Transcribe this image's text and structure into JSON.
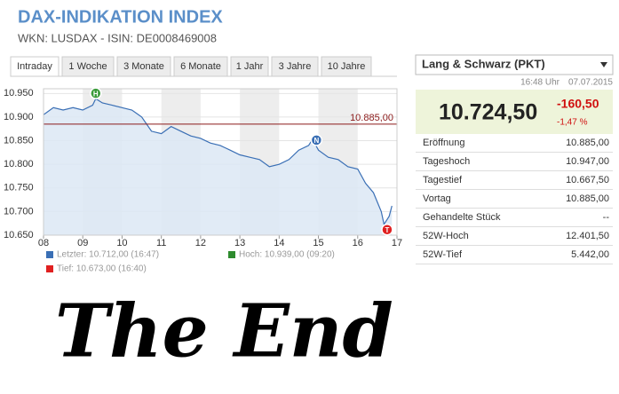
{
  "header": {
    "title": "DAX-INDIKATION INDEX",
    "subtitle": "WKN: LUSDAX - ISIN: DE0008469008"
  },
  "tabs": [
    "Intraday",
    "1 Woche",
    "3 Monate",
    "6 Monate",
    "1 Jahr",
    "3 Jahre",
    "10 Jahre"
  ],
  "chart_data": {
    "type": "line",
    "x": [
      8.0,
      8.25,
      8.5,
      8.75,
      9.0,
      9.25,
      9.33,
      9.5,
      9.75,
      10.0,
      10.25,
      10.5,
      10.75,
      11.0,
      11.25,
      11.5,
      11.75,
      12.0,
      12.25,
      12.5,
      12.75,
      13.0,
      13.25,
      13.5,
      13.75,
      14.0,
      14.25,
      14.5,
      14.75,
      14.85,
      15.0,
      15.25,
      15.5,
      15.75,
      16.0,
      16.2,
      16.4,
      16.6,
      16.67,
      16.8,
      16.87
    ],
    "values": [
      10905,
      10920,
      10915,
      10920,
      10915,
      10925,
      10939,
      10930,
      10925,
      10920,
      10915,
      10900,
      10870,
      10865,
      10880,
      10870,
      10860,
      10855,
      10845,
      10840,
      10830,
      10820,
      10815,
      10810,
      10795,
      10800,
      10810,
      10830,
      10840,
      10853,
      10830,
      10815,
      10810,
      10795,
      10790,
      10760,
      10740,
      10700,
      10673,
      10690,
      10712
    ],
    "color": "#3a6fb5",
    "xlim": [
      8,
      17
    ],
    "xticks": [
      {
        "value": 8,
        "label": "08"
      },
      {
        "value": 9,
        "label": "09"
      },
      10,
      11,
      12,
      13,
      14,
      15,
      16,
      17
    ],
    "ylim": [
      10650,
      10960
    ],
    "yticks": [
      {
        "value": 10650,
        "label": "10.650"
      },
      {
        "value": 10700,
        "label": "10.700"
      },
      {
        "value": 10750,
        "label": "10.750"
      },
      {
        "value": 10800,
        "label": "10.800"
      },
      {
        "value": 10850,
        "label": "10.850"
      },
      {
        "value": 10900,
        "label": "10.900"
      },
      {
        "value": 10950,
        "label": "10.950"
      }
    ],
    "reference": {
      "value": 10885,
      "label": "10.885,00",
      "color": "#8b1a1a"
    },
    "markers": [
      {
        "label": "H",
        "x": 9.33,
        "y": 10939,
        "color": "#3a9b3a"
      },
      {
        "label": "N",
        "x": 14.95,
        "y": 10840,
        "color": "#3a6fb5"
      },
      {
        "label": "T",
        "x": 16.75,
        "y": 10673,
        "color": "#e02020"
      }
    ],
    "legend": [
      {
        "text": "Letzter: 10.712,00 (16:47)",
        "color": "#3a6fb5"
      },
      {
        "text": "Hoch: 10.939,00 (09:20)",
        "color": "#2e8b2e"
      },
      {
        "text": "Tief: 10.673,00 (16:40)",
        "color": "#e02020"
      }
    ]
  },
  "right_panel": {
    "exchange": "Lang & Schwarz (PKT)",
    "time": "16:48 Uhr",
    "date": "07.07.2015",
    "price": "10.724,50",
    "change": "-160,50",
    "change_pct": "-1,47 %",
    "rows": [
      [
        "Eröffnung",
        "10.885,00"
      ],
      [
        "Tageshoch",
        "10.947,00"
      ],
      [
        "Tagestief",
        "10.667,50"
      ],
      [
        "Vortag",
        "10.885,00"
      ],
      [
        "Gehandelte Stück",
        "--"
      ],
      [
        "52W-Hoch",
        "12.401,50"
      ],
      [
        "52W-Tief",
        "5.442,00"
      ]
    ]
  },
  "footer": "The End"
}
